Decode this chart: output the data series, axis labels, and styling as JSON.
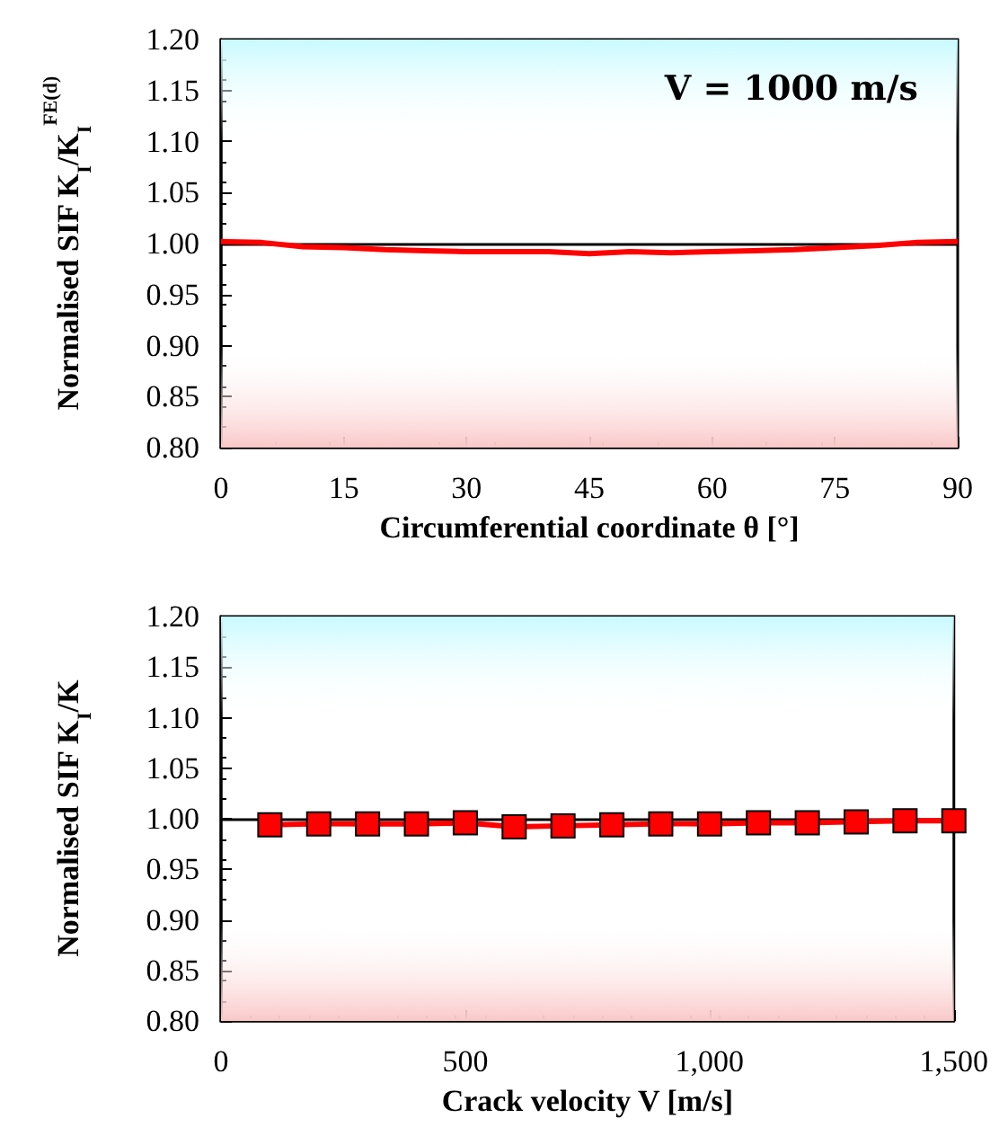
{
  "chart_data": [
    {
      "type": "line",
      "ylabel": "Normalised SIF K$_{I}$/K$_{I}$$^{FE(d)}$",
      "xlabel": "Circumferential coordinate θ [°]",
      "annotations": [
        "V = 1000 m/s"
      ],
      "x": [
        0,
        5,
        10,
        15,
        20,
        25,
        30,
        35,
        40,
        45,
        50,
        55,
        60,
        65,
        70,
        75,
        80,
        85,
        90
      ],
      "series": [
        {
          "color": "#ff0000",
          "values": [
            1.002,
            1.001,
            0.997,
            0.996,
            0.994,
            0.993,
            0.992,
            0.992,
            0.992,
            0.99,
            0.992,
            0.991,
            0.992,
            0.993,
            0.994,
            0.996,
            0.998,
            1.001,
            1.002
          ]
        }
      ],
      "xlim": [
        0,
        90
      ],
      "xticks": [
        0,
        15,
        30,
        45,
        60,
        75,
        90
      ],
      "ylim": [
        0.8,
        1.2
      ],
      "yticks": [
        {
          "value": 0.8,
          "label": "0.80"
        },
        0.85,
        {
          "value": 0.9,
          "label": "0.90"
        },
        0.95,
        {
          "value": 1.0,
          "label": "1.00"
        },
        1.05,
        {
          "value": 1.1,
          "label": "1.10"
        },
        1.15,
        {
          "value": 1.2,
          "label": "1.20"
        }
      ],
      "ref_lines": [
        {
          "axis": "y",
          "value": 1.0,
          "color": "#000000"
        }
      ],
      "bands": [
        {
          "axis": "y",
          "from": 1.1,
          "to": 1.2,
          "color": "#c8faff"
        },
        {
          "axis": "y",
          "from": 0.8,
          "to": 0.9,
          "color": "#fac8c8"
        }
      ],
      "grid": false,
      "marker": "none",
      "line_style": "solid"
    },
    {
      "type": "line",
      "ylabel": "Normalised SIF K$_{I}$/K",
      "xlabel": "Crack velocity V [m/s]",
      "x": [
        100,
        200,
        300,
        400,
        500,
        600,
        700,
        800,
        900,
        1000,
        1100,
        1200,
        1300,
        1400,
        1500
      ],
      "series": [
        {
          "color": "#ff0000",
          "values": [
            0.994,
            0.995,
            0.995,
            0.995,
            0.996,
            0.992,
            0.993,
            0.994,
            0.995,
            0.995,
            0.996,
            0.996,
            0.997,
            0.998,
            0.998
          ]
        }
      ],
      "xlim": [
        0,
        1500
      ],
      "xticks": [
        0,
        500,
        {
          "value": 1000,
          "label": "1,000"
        },
        {
          "value": 1500,
          "label": "1,500"
        }
      ],
      "ylim": [
        0.8,
        1.2
      ],
      "yticks": [
        {
          "value": 0.8,
          "label": "0.80"
        },
        0.85,
        {
          "value": 0.9,
          "label": "0.90"
        },
        0.95,
        {
          "value": 1.0,
          "label": "1.00"
        },
        1.05,
        {
          "value": 1.1,
          "label": "1.10"
        },
        1.15,
        {
          "value": 1.2,
          "label": "1.20"
        }
      ],
      "ref_lines": [
        {
          "axis": "y",
          "value": 1.0,
          "color": "#000000"
        }
      ],
      "bands": [
        {
          "axis": "y",
          "from": 1.1,
          "to": 1.2,
          "color": "#c8faff"
        },
        {
          "axis": "y",
          "from": 0.8,
          "to": 0.9,
          "color": "#fac8c8"
        }
      ],
      "grid": false,
      "marker": "square",
      "line_style": "solid"
    }
  ]
}
